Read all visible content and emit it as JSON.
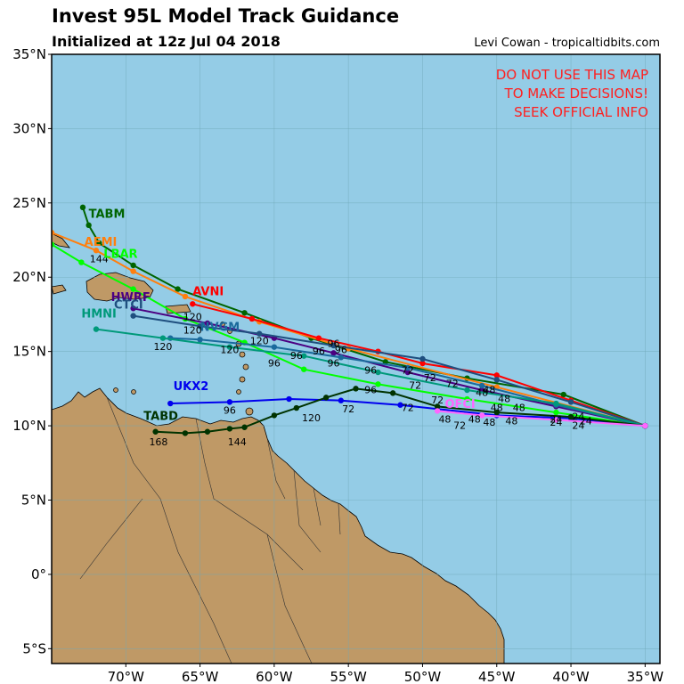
{
  "header": {
    "title": "Invest 95L Model Track Guidance",
    "subtitle": "Initialized at 12z Jul 04 2018",
    "credit": "Levi Cowan - tropicaltidbits.com"
  },
  "warning": {
    "lines": [
      "DO NOT USE THIS MAP",
      "TO MAKE DECISIONS!",
      "SEEK OFFICIAL INFO"
    ],
    "color": "#ff0000"
  },
  "map": {
    "lon_range": [
      -75,
      -34
    ],
    "lat_range": [
      -6,
      35
    ],
    "lon_ticks": [
      {
        "value": -70,
        "label": "70°W"
      },
      {
        "value": -65,
        "label": "65°W"
      },
      {
        "value": -60,
        "label": "60°W"
      },
      {
        "value": -55,
        "label": "55°W"
      },
      {
        "value": -50,
        "label": "50°W"
      },
      {
        "value": -45,
        "label": "45°W"
      },
      {
        "value": -40,
        "label": "40°W"
      },
      {
        "value": -35,
        "label": "35°W"
      }
    ],
    "lat_ticks": [
      {
        "value": 35,
        "label": "35°N"
      },
      {
        "value": 30,
        "label": "30°N"
      },
      {
        "value": 25,
        "label": "25°N"
      },
      {
        "value": 20,
        "label": "20°N"
      },
      {
        "value": 15,
        "label": "15°N"
      },
      {
        "value": 10,
        "label": "10°N"
      },
      {
        "value": 5,
        "label": "5°N"
      },
      {
        "value": 0,
        "label": "0°"
      },
      {
        "value": -5,
        "label": "5°S"
      }
    ],
    "ocean_color": "#94cce6",
    "land_color": "#bf9966",
    "grid": true
  },
  "tracks": [
    {
      "name": "TABM",
      "color": "#006400",
      "points": [
        [
          -35,
          10
        ],
        [
          -40.5,
          12.1
        ],
        [
          -47,
          13.2
        ],
        [
          -52.5,
          14.3
        ],
        [
          -57.5,
          15.9
        ],
        [
          -62,
          17.6
        ],
        [
          -66.5,
          19.2
        ],
        [
          -69.5,
          20.8
        ],
        [
          -71.8,
          22.3
        ],
        [
          -72.5,
          23.5
        ],
        [
          -72.9,
          24.7
        ]
      ],
      "hour_labels": []
    },
    {
      "name": "AEMI",
      "color": "#ff7f0e",
      "points": [
        [
          -35,
          10
        ],
        [
          -45,
          12.6
        ],
        [
          -55,
          15.2
        ],
        [
          -61,
          17
        ],
        [
          -66,
          18.7
        ],
        [
          -69.5,
          20.4
        ],
        [
          -72,
          21.8
        ],
        [
          -75,
          23.0
        ]
      ],
      "hour_labels": [
        {
          "lon": -71.8,
          "lat": 21.0,
          "text": "144"
        }
      ]
    },
    {
      "name": "AVNI",
      "color": "#ff0000",
      "points": [
        [
          -35,
          10
        ],
        [
          -40,
          11.7
        ],
        [
          -45,
          13.4
        ],
        [
          -50,
          14.2
        ],
        [
          -53,
          15.0
        ],
        [
          -57,
          15.9
        ],
        [
          -61.5,
          17.2
        ],
        [
          -65.5,
          18.2
        ]
      ],
      "hour_labels": []
    },
    {
      "name": "LBAR",
      "color": "#00ff00",
      "points": [
        [
          -35,
          10
        ],
        [
          -41,
          10.9
        ],
        [
          -47,
          11.8
        ],
        [
          -53,
          12.8
        ],
        [
          -58,
          13.8
        ],
        [
          -62,
          15.6
        ],
        [
          -66,
          17.2
        ],
        [
          -69.5,
          19.2
        ],
        [
          -73,
          21.0
        ],
        [
          -75,
          22.2
        ]
      ],
      "hour_labels": []
    },
    {
      "name": "HWRF",
      "color": "#4b0082",
      "points": [
        [
          -35,
          10
        ],
        [
          -41,
          11.3
        ],
        [
          -46,
          12.4
        ],
        [
          -51,
          13.6
        ],
        [
          -56,
          14.9
        ],
        [
          -60,
          15.9
        ],
        [
          -64.5,
          16.9
        ],
        [
          -69.5,
          17.9
        ]
      ],
      "hour_labels": [
        {
          "lon": -65.5,
          "lat": 17.1,
          "text": "120"
        }
      ]
    },
    {
      "name": "CTCI",
      "color": "#1f4f7f",
      "points": [
        [
          -35,
          10
        ],
        [
          -40,
          11.6
        ],
        [
          -45,
          13.1
        ],
        [
          -50,
          14.5
        ],
        [
          -56,
          15.4
        ],
        [
          -61,
          16.2
        ],
        [
          -65,
          16.7
        ],
        [
          -69.5,
          17.4
        ]
      ],
      "hour_labels": [
        {
          "lon": -65.5,
          "lat": 16.2,
          "text": "120"
        },
        {
          "lon": -61,
          "lat": 15.5,
          "text": "120"
        }
      ]
    },
    {
      "name": "NVGM",
      "color": "#1a6a9c",
      "points": [
        [
          -35,
          10
        ],
        [
          -41,
          11.4
        ],
        [
          -46,
          12.7
        ],
        [
          -51,
          13.9
        ],
        [
          -55.5,
          14.6
        ],
        [
          -60,
          15.3
        ],
        [
          -65,
          15.8
        ],
        [
          -67,
          15.9
        ]
      ],
      "hour_labels": [
        {
          "lon": -63,
          "lat": 14.9,
          "text": "120"
        }
      ]
    },
    {
      "name": "HMNI",
      "color": "#00997a",
      "points": [
        [
          -35,
          10
        ],
        [
          -41,
          11.5
        ],
        [
          -47,
          12.4
        ],
        [
          -53,
          13.6
        ],
        [
          -58,
          14.7
        ],
        [
          -63,
          15.3
        ],
        [
          -67.5,
          15.9
        ],
        [
          -72,
          16.5
        ]
      ],
      "hour_labels": [
        {
          "lon": -67.5,
          "lat": 15.1,
          "text": "120"
        }
      ]
    },
    {
      "name": "UKX2",
      "color": "#0000ee",
      "points": [
        [
          -35,
          10
        ],
        [
          -40,
          10.5
        ],
        [
          -45,
          10.7
        ],
        [
          -51.5,
          11.4
        ],
        [
          -55.5,
          11.7
        ],
        [
          -59,
          11.8
        ],
        [
          -63,
          11.6
        ],
        [
          -67,
          11.5
        ]
      ],
      "hour_labels": [
        {
          "lon": -63,
          "lat": 10.8,
          "text": "96"
        },
        {
          "lon": -57.5,
          "lat": 10.3,
          "text": "120"
        },
        {
          "lon": -55,
          "lat": 10.9,
          "text": "72"
        }
      ]
    },
    {
      "name": "TABD",
      "color": "#003300",
      "points": [
        [
          -35,
          10
        ],
        [
          -40,
          10.6
        ],
        [
          -45,
          10.9
        ],
        [
          -49,
          11.3
        ],
        [
          -52,
          12.2
        ],
        [
          -54.5,
          12.5
        ],
        [
          -56.5,
          11.9
        ],
        [
          -58.5,
          11.2
        ],
        [
          -60,
          10.7
        ],
        [
          -62,
          9.9
        ],
        [
          -63,
          9.8
        ],
        [
          -64.5,
          9.6
        ],
        [
          -66,
          9.5
        ],
        [
          -68,
          9.6
        ]
      ],
      "hour_labels": [
        {
          "lon": -62.5,
          "lat": 8.7,
          "text": "144"
        },
        {
          "lon": -67.8,
          "lat": 8.7,
          "text": "168"
        }
      ]
    },
    {
      "name": "OFCI",
      "color": "#ff66ff",
      "points": [
        [
          -35,
          10
        ],
        [
          -41,
          10.4
        ],
        [
          -46,
          10.7
        ],
        [
          -49,
          11.0
        ]
      ],
      "hour_labels": []
    }
  ],
  "extra_hour_labels": [
    {
      "lon": -56,
      "lat": 15.3,
      "text": "96"
    },
    {
      "lon": -57,
      "lat": 14.8,
      "text": "96"
    },
    {
      "lon": -58.5,
      "lat": 14.5,
      "text": "96"
    },
    {
      "lon": -56,
      "lat": 14.0,
      "text": "96"
    },
    {
      "lon": -53.5,
      "lat": 13.5,
      "text": "96"
    },
    {
      "lon": -60,
      "lat": 14.0,
      "text": "96"
    },
    {
      "lon": -53.5,
      "lat": 12.2,
      "text": "96"
    },
    {
      "lon": -51,
      "lat": 13.5,
      "text": "72"
    },
    {
      "lon": -49.5,
      "lat": 13.0,
      "text": "72"
    },
    {
      "lon": -48,
      "lat": 12.6,
      "text": "72"
    },
    {
      "lon": -50.5,
      "lat": 12.5,
      "text": "72"
    },
    {
      "lon": -49,
      "lat": 11.5,
      "text": "72"
    },
    {
      "lon": -51,
      "lat": 11.0,
      "text": "72"
    },
    {
      "lon": -47.5,
      "lat": 9.8,
      "text": "72"
    },
    {
      "lon": -45.5,
      "lat": 12.2,
      "text": "48"
    },
    {
      "lon": -44.5,
      "lat": 11.6,
      "text": "48"
    },
    {
      "lon": -45,
      "lat": 11.0,
      "text": "48"
    },
    {
      "lon": -43.5,
      "lat": 11.0,
      "text": "48"
    },
    {
      "lon": -48.5,
      "lat": 10.2,
      "text": "48"
    },
    {
      "lon": -46.5,
      "lat": 10.2,
      "text": "48"
    },
    {
      "lon": -45.5,
      "lat": 10.0,
      "text": "48"
    },
    {
      "lon": -44,
      "lat": 10.1,
      "text": "48"
    },
    {
      "lon": -46,
      "lat": 12.0,
      "text": "48"
    },
    {
      "lon": -41,
      "lat": 10.2,
      "text": "24"
    },
    {
      "lon": -39.5,
      "lat": 10.4,
      "text": "24"
    },
    {
      "lon": -39,
      "lat": 10.1,
      "text": "24"
    },
    {
      "lon": -41,
      "lat": 10.0,
      "text": "24"
    },
    {
      "lon": -39.5,
      "lat": 9.8,
      "text": "24"
    },
    {
      "lon": -55.5,
      "lat": 14.9,
      "text": "96"
    }
  ],
  "track_name_labels": [
    {
      "text": "TABM",
      "color": "#006400",
      "lon": -72.5,
      "lat": 24.0
    },
    {
      "text": "AEMI",
      "color": "#ff7f0e",
      "lon": -72.8,
      "lat": 22.1
    },
    {
      "text": "LBAR",
      "color": "#00ff00",
      "lon": -71.5,
      "lat": 21.3
    },
    {
      "text": "AVNI",
      "color": "#ff0000",
      "lon": -65.5,
      "lat": 18.8
    },
    {
      "text": "HWRF",
      "color": "#4b0082",
      "lon": -71.0,
      "lat": 18.4
    },
    {
      "text": "CTCI",
      "color": "#1f4f7f",
      "lon": -70.8,
      "lat": 17.9
    },
    {
      "text": "NVGM",
      "color": "#1a6a9c",
      "lon": -65.0,
      "lat": 16.4
    },
    {
      "text": "HMNI",
      "color": "#00997a",
      "lon": -73.0,
      "lat": 17.3
    },
    {
      "text": "UKX2",
      "color": "#0000ee",
      "lon": -66.8,
      "lat": 12.4
    },
    {
      "text": "TABD",
      "color": "#003300",
      "lon": -68.8,
      "lat": 10.4
    },
    {
      "text": "OFCI",
      "color": "#ff66ff",
      "lon": -48.5,
      "lat": 11.2
    }
  ]
}
